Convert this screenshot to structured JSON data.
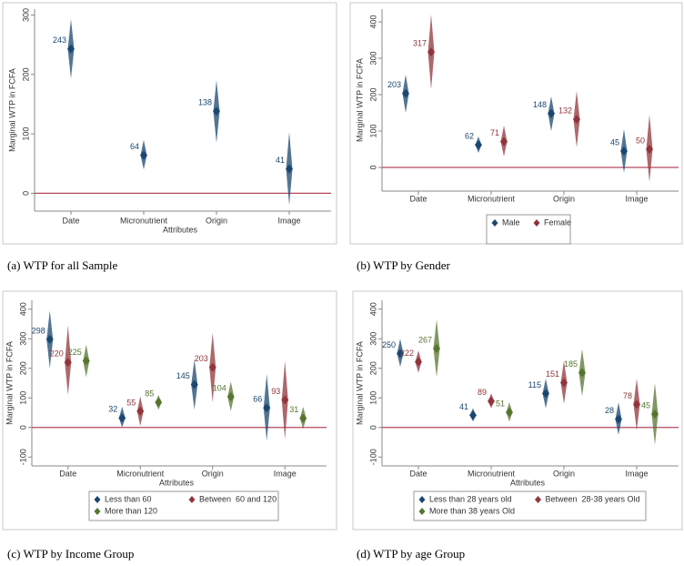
{
  "chart_data": [
    {
      "type": "diamond-ci",
      "caption": "(a) WTP for all Sample",
      "xlabel": "Attributes",
      "ylabel": "Marginal WTP in FCFA",
      "categories": [
        "Date",
        "Micronutrient",
        "Origin",
        "Image"
      ],
      "color": "#1a476f",
      "values": [
        243,
        64,
        138,
        41
      ],
      "ci_lower": [
        193,
        40,
        85,
        -20
      ],
      "ci_upper": [
        293,
        90,
        190,
        103
      ],
      "ylim": [
        -30,
        310
      ],
      "yticks": [
        0,
        100,
        200,
        300
      ],
      "hline": 0,
      "hline_color": "#b5485d"
    },
    {
      "type": "diamond-ci",
      "caption": "(b) WTP by Gender",
      "ylabel": "Marginal WTP in FCFA",
      "categories": [
        "Date",
        "Micronutrient",
        "Origin",
        "Image"
      ],
      "series": [
        {
          "name": "Male",
          "color": "#1a476f",
          "values": [
            203,
            62,
            148,
            45
          ],
          "ci_lower": [
            150,
            40,
            100,
            -15
          ],
          "ci_upper": [
            255,
            85,
            195,
            105
          ]
        },
        {
          "name": "Female",
          "color": "#90353b",
          "values": [
            317,
            71,
            132,
            50
          ],
          "ci_lower": [
            215,
            30,
            55,
            -40
          ],
          "ci_upper": [
            420,
            115,
            210,
            145
          ]
        }
      ],
      "ylim": [
        -65,
        435
      ],
      "yticks": [
        0,
        100,
        200,
        300,
        400
      ],
      "hline": 0,
      "hline_color": "#b5485d"
    },
    {
      "type": "diamond-ci",
      "caption": "(c) WTP by Income Group",
      "xlabel": "Attributes",
      "ylabel": "Marginal WTP in FCFA",
      "categories": [
        "Date",
        "Micronutrient",
        "Origin",
        "Image"
      ],
      "series": [
        {
          "name": "Less than 60",
          "color": "#1a476f",
          "values": [
            298,
            32,
            145,
            66
          ],
          "ci_lower": [
            200,
            0,
            60,
            -45
          ],
          "ci_upper": [
            395,
            70,
            230,
            180
          ]
        },
        {
          "name": "Between  60 and 120",
          "color": "#90353b",
          "values": [
            220,
            55,
            203,
            93
          ],
          "ci_lower": [
            110,
            5,
            85,
            -40
          ],
          "ci_upper": [
            345,
            105,
            320,
            225
          ]
        },
        {
          "name": "More than 120",
          "color": "#55752f",
          "values": [
            225,
            85,
            104,
            31
          ],
          "ci_lower": [
            170,
            60,
            55,
            -5
          ],
          "ci_upper": [
            280,
            110,
            155,
            70
          ]
        }
      ],
      "ylim": [
        -130,
        430
      ],
      "yticks": [
        -100,
        0,
        100,
        200,
        300,
        400
      ],
      "hline": 0,
      "hline_color": "#b5485d"
    },
    {
      "type": "diamond-ci",
      "caption": "(d) WTP by age Group",
      "xlabel": "Attributes",
      "ylabel": "Marginal WTP in FCFA",
      "categories": [
        "Date",
        "Micronutrient",
        "Origin",
        "Image"
      ],
      "series": [
        {
          "name": "Less than 28 years old",
          "color": "#1a476f",
          "values": [
            250,
            41,
            115,
            28
          ],
          "ci_lower": [
            205,
            20,
            65,
            -25
          ],
          "ci_upper": [
            300,
            65,
            165,
            85
          ]
        },
        {
          "name": "Between  28-38 years Old",
          "color": "#90353b",
          "values": [
            222,
            89,
            151,
            78
          ],
          "ci_lower": [
            185,
            65,
            80,
            -10
          ],
          "ci_upper": [
            260,
            115,
            225,
            165
          ]
        },
        {
          "name": "More than 38 years Old",
          "color": "#55752f",
          "values": [
            267,
            51,
            185,
            45
          ],
          "ci_lower": [
            170,
            20,
            105,
            -60
          ],
          "ci_upper": [
            365,
            85,
            265,
            150
          ]
        }
      ],
      "ylim": [
        -130,
        430
      ],
      "yticks": [
        -100,
        0,
        100,
        200,
        300,
        400
      ],
      "hline": 0,
      "hline_color": "#b5485d"
    }
  ]
}
